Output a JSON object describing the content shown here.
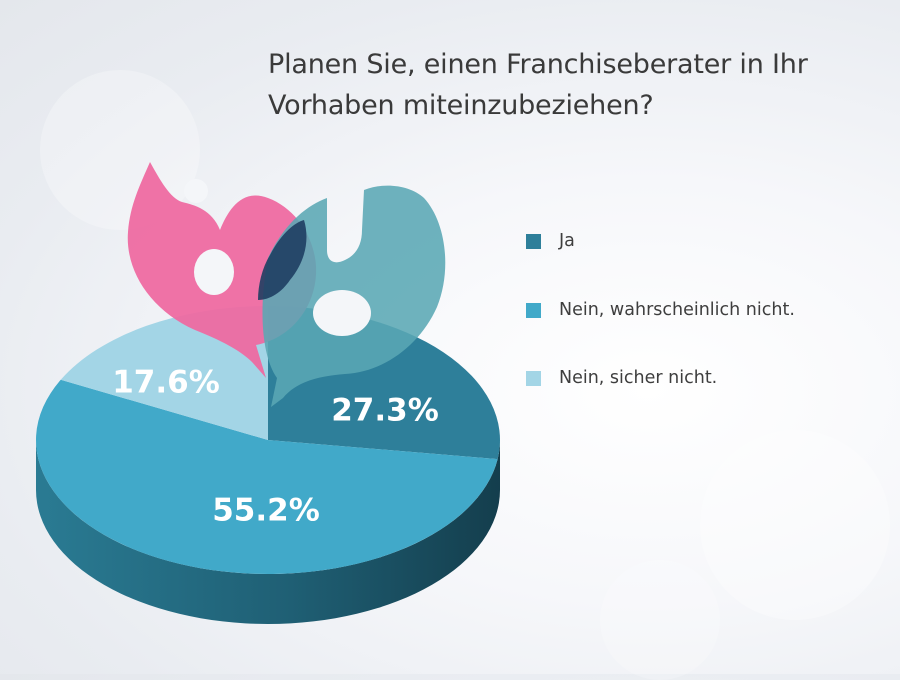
{
  "chart_data": {
    "type": "pie",
    "title": "Planen Sie, einen Franchiseberater in Ihr Vorhaben miteinzubeziehen?",
    "categories": [
      "Ja",
      "Nein, wahrscheinlich nicht.",
      "Nein, sicher nicht."
    ],
    "values": [
      27.3,
      55.2,
      17.6
    ],
    "labels": [
      "27.3%",
      "55.2%",
      "17.6%"
    ],
    "unit": "%",
    "colors": [
      "#2e7f9a",
      "#41a9c9",
      "#a3d5e6"
    ],
    "style": "3d-pie",
    "legend": "right",
    "decoration": [
      "question-mark-speech-bubble-icon"
    ]
  }
}
